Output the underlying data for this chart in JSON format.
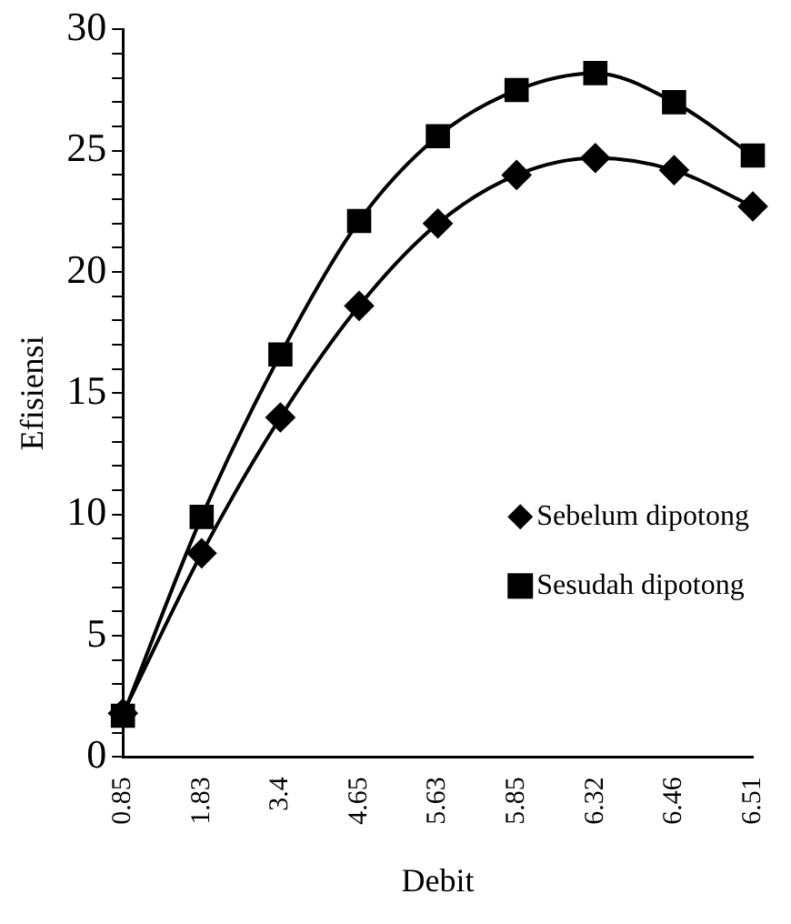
{
  "chart_data": {
    "type": "line",
    "xlabel": "Debit",
    "ylabel": "Efisiensi",
    "categories": [
      "0.85",
      "1.83",
      "3.4",
      "4.65",
      "5.63",
      "5.85",
      "6.32",
      "6.46",
      "6.51"
    ],
    "series": [
      {
        "name": "Sebelum dipotong",
        "color": "#000000",
        "marker": "diamond",
        "values": [
          1.8,
          8.4,
          14.0,
          18.6,
          22.0,
          24.0,
          24.7,
          24.2,
          22.7
        ]
      },
      {
        "name": "Sesudah dipotong",
        "color": "#000000",
        "marker": "square",
        "values": [
          1.7,
          9.9,
          16.6,
          22.1,
          25.6,
          27.5,
          28.2,
          27.0,
          24.8
        ]
      }
    ],
    "ylim": [
      0,
      30
    ],
    "yticks": [
      0,
      {
        "value": 1,
        "label": null
      },
      {
        "value": 2,
        "label": null
      },
      {
        "value": 3,
        "label": null
      },
      {
        "value": 4,
        "label": null
      },
      5,
      {
        "value": 6,
        "label": null
      },
      {
        "value": 7,
        "label": null
      },
      {
        "value": 8,
        "label": null
      },
      {
        "value": 9,
        "label": null
      },
      10,
      {
        "value": 11,
        "label": null
      },
      {
        "value": 12,
        "label": null
      },
      {
        "value": 13,
        "label": null
      },
      {
        "value": 14,
        "label": null
      },
      15,
      {
        "value": 16,
        "label": null
      },
      {
        "value": 17,
        "label": null
      },
      {
        "value": 18,
        "label": null
      },
      {
        "value": 19,
        "label": null
      },
      20,
      {
        "value": 21,
        "label": null
      },
      {
        "value": 22,
        "label": null
      },
      {
        "value": 23,
        "label": null
      },
      {
        "value": 24,
        "label": null
      },
      25,
      {
        "value": 26,
        "label": null
      },
      {
        "value": 27,
        "label": null
      },
      {
        "value": 28,
        "label": null
      },
      {
        "value": 29,
        "label": null
      },
      30
    ],
    "grid": false,
    "legend": "right",
    "line_style": "solid"
  }
}
